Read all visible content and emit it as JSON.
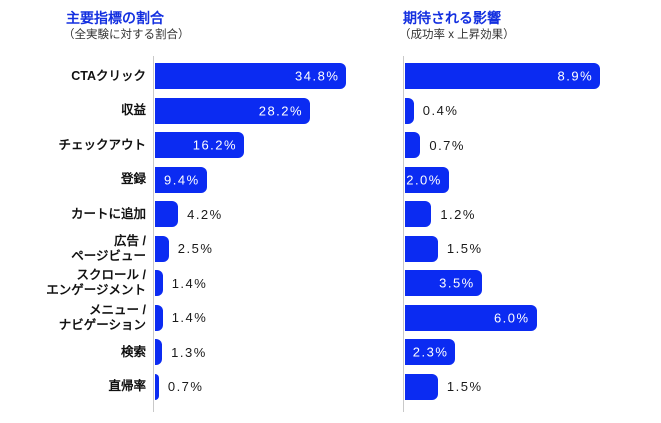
{
  "colors": {
    "bar": "#0b2bf2",
    "title": "#1430e0",
    "axis": "#c9c9c9",
    "value_inside": "#ffffff",
    "value_outside": "#1a1a1a",
    "category_label": "#111111",
    "subtitle": "#333333"
  },
  "chart_data": [
    {
      "type": "bar",
      "orientation": "horizontal",
      "title": "主要指標の割合",
      "subtitle": "（全実験に対する割合）",
      "xlabel": "",
      "ylabel": "",
      "xlim": [
        0,
        40
      ],
      "grid": false,
      "legend": false,
      "categories": [
        "CTAクリック",
        "収益",
        "チェックアウト",
        "登録",
        "カートに追加",
        "広告 /\nページビュー",
        "スクロール /\nエンゲージメント",
        "メニュー /\nナビゲーション",
        "検索",
        "直帰率"
      ],
      "values": [
        34.8,
        28.2,
        16.2,
        9.4,
        4.2,
        2.5,
        1.4,
        1.4,
        1.3,
        0.7
      ],
      "value_labels": [
        "34.8%",
        "28.2%",
        "16.2%",
        "9.4%",
        "4.2%",
        "2.5%",
        "1.4%",
        "1.4%",
        "1.3%",
        "0.7%"
      ],
      "label_inside": [
        true,
        true,
        true,
        true,
        false,
        false,
        false,
        false,
        false,
        false
      ]
    },
    {
      "type": "bar",
      "orientation": "horizontal",
      "title": "期待される影響",
      "subtitle": "（成功率 x 上昇効果）",
      "xlabel": "",
      "ylabel": "",
      "xlim": [
        0,
        11.4
      ],
      "grid": false,
      "legend": false,
      "categories": [
        "CTAクリック",
        "収益",
        "チェックアウト",
        "登録",
        "カートに追加",
        "広告 /\nページビュー",
        "スクロール /\nエンゲージメント",
        "メニュー /\nナビゲーション",
        "検索",
        "直帰率"
      ],
      "values": [
        8.9,
        0.4,
        0.7,
        2.0,
        1.2,
        1.5,
        3.5,
        6.0,
        2.3,
        1.5
      ],
      "value_labels": [
        "8.9%",
        "0.4%",
        "0.7%",
        "2.0%",
        "1.2%",
        "1.5%",
        "3.5%",
        "6.0%",
        "2.3%",
        "1.5%"
      ],
      "label_inside": [
        true,
        false,
        false,
        true,
        false,
        false,
        true,
        true,
        true,
        false
      ]
    }
  ]
}
